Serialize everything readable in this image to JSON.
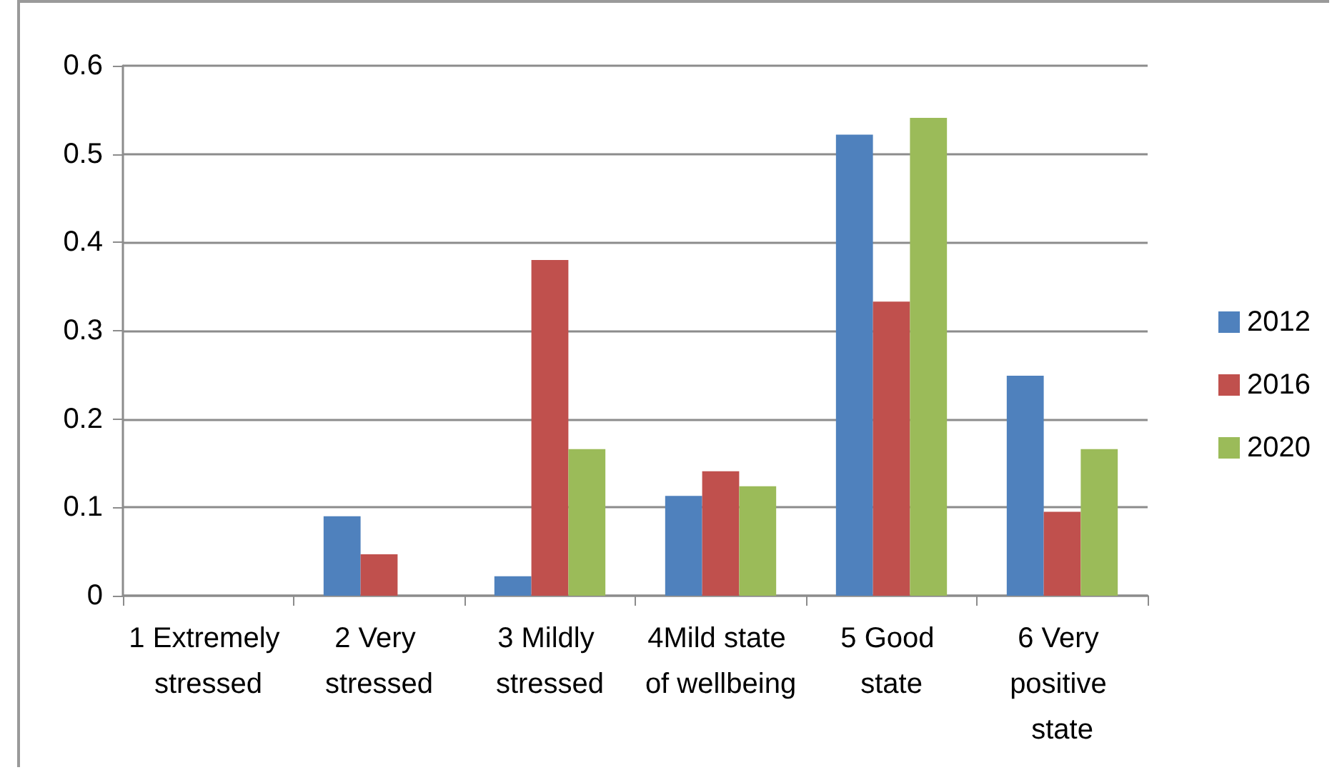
{
  "chart_data": {
    "type": "bar",
    "categories": [
      "1 Extremely stressed",
      "2 Very stressed",
      "3 Mildly stressed",
      "4Mild state of wellbeing",
      "5 Good state",
      "6 Very positive state"
    ],
    "series": [
      {
        "name": "2012",
        "color": "#4f81bd",
        "values": [
          0,
          0.09,
          0.022,
          0.113,
          0.522,
          0.249
        ]
      },
      {
        "name": "2016",
        "color": "#c0504d",
        "values": [
          0,
          0.047,
          0.38,
          0.141,
          0.333,
          0.095
        ]
      },
      {
        "name": "2020",
        "color": "#9bbb59",
        "values": [
          0,
          0,
          0.166,
          0.124,
          0.541,
          0.166
        ]
      }
    ],
    "ylim": [
      0,
      0.6
    ],
    "yticks": [
      0,
      0.1,
      0.2,
      0.3,
      0.4,
      0.5,
      0.6
    ],
    "grid": "y",
    "legend": "right"
  }
}
